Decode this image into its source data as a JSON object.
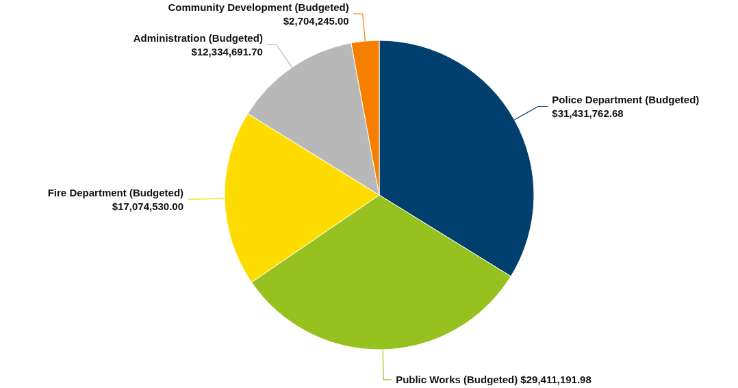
{
  "chart_data": {
    "type": "pie",
    "categories": [
      "Police Department (Budgeted)",
      "Public Works (Budgeted)",
      "Fire Department (Budgeted)",
      "Administration (Budgeted)",
      "Community Development (Budgeted)"
    ],
    "values": [
      31431762.68,
      29411191.98,
      17074530.0,
      12334691.7,
      2704245.0
    ],
    "value_labels": [
      "$31,431,762.68",
      "$29,411,191.98",
      "$17,074,530.00",
      "$12,334,691.70",
      "$2,704,245.00"
    ],
    "colors": [
      "#003f6e",
      "#97c11f",
      "#ffdc00",
      "#b8b8b8",
      "#f77f00"
    ],
    "legend": false
  }
}
